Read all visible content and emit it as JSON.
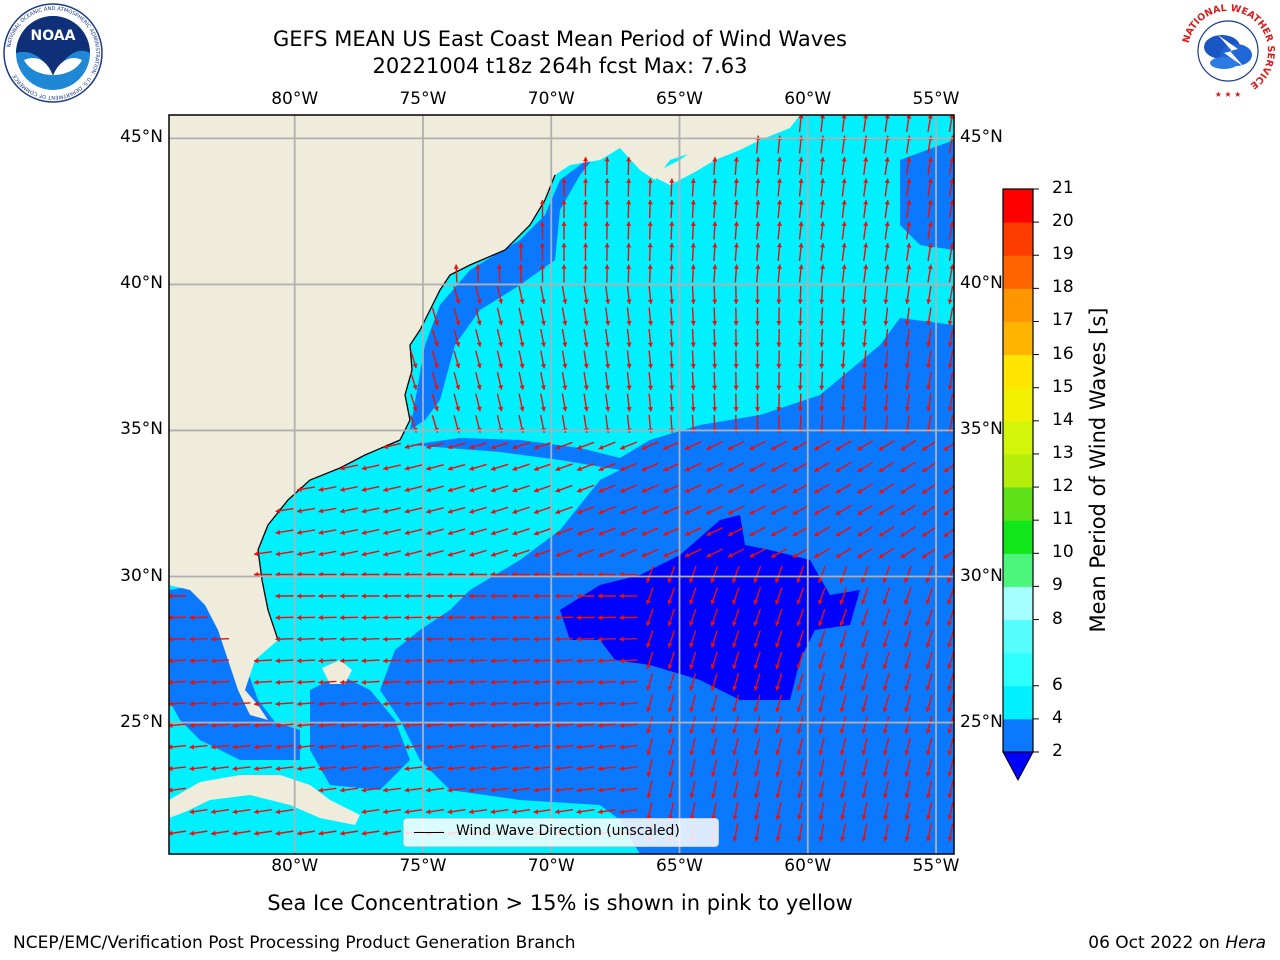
{
  "title": {
    "line1": "GEFS MEAN US East Coast Mean Period of Wind Waves",
    "line2": "20221004 t18z 264h fcst   Max: 7.63"
  },
  "map": {
    "lon_labels": [
      "80°W",
      "75°W",
      "70°W",
      "65°W",
      "60°W",
      "55°W"
    ],
    "lat_labels": [
      "45°N",
      "40°N",
      "35°N",
      "30°N",
      "25°N"
    ],
    "extent": {
      "lon_min": -84.9,
      "lon_max": -54.3,
      "lat_min": 20.5,
      "lat_max": 45.8
    },
    "colors": {
      "land": "#efecdc",
      "grid": "#b0b0b0",
      "arrow": "#e8100a"
    }
  },
  "legend": {
    "label": "Wind Wave Direction (unscaled)"
  },
  "colorbar": {
    "label": "Mean Period of Wind Waves [s]",
    "ticks": [
      "21",
      "20",
      "19",
      "18",
      "17",
      "16",
      "15",
      "14",
      "13",
      "12",
      "11",
      "10",
      "9",
      "8",
      "6",
      "4",
      "2"
    ],
    "extend_color": "#0000ff",
    "bins": [
      {
        "min": 2,
        "max": 4,
        "color": "#0a78ff"
      },
      {
        "min": 4,
        "max": 6,
        "color": "#00f0ff"
      },
      {
        "min": 6,
        "max": 7,
        "color": "#2effff"
      },
      {
        "min": 7,
        "max": 8,
        "color": "#55ffff"
      },
      {
        "min": 8,
        "max": 9,
        "color": "#a6ffff"
      },
      {
        "min": 9,
        "max": 10,
        "color": "#4cf57c"
      },
      {
        "min": 10,
        "max": 11,
        "color": "#10e61a"
      },
      {
        "min": 11,
        "max": 12,
        "color": "#5fe11a"
      },
      {
        "min": 12,
        "max": 13,
        "color": "#b4ee0a"
      },
      {
        "min": 13,
        "max": 14,
        "color": "#d2f50a"
      },
      {
        "min": 14,
        "max": 15,
        "color": "#f0f000"
      },
      {
        "min": 15,
        "max": 16,
        "color": "#ffe600"
      },
      {
        "min": 16,
        "max": 17,
        "color": "#ffb400"
      },
      {
        "min": 17,
        "max": 18,
        "color": "#ff9600"
      },
      {
        "min": 18,
        "max": 19,
        "color": "#ff6400"
      },
      {
        "min": 19,
        "max": 20,
        "color": "#ff3c00"
      },
      {
        "min": 20,
        "max": 21,
        "color": "#ff0000"
      }
    ]
  },
  "period_zones": {
    "ocean_base": "#00f0ff",
    "zone_2_4": "#0a78ff",
    "zone_lt2": "#0000ff",
    "band_6_7": "#2effff"
  },
  "notes": {
    "sea_ice": "Sea Ice Concentration > 15% is shown in pink to yellow",
    "credit": "NCEP/EMC/Verification Post Processing Product Generation Branch",
    "date_prefix": "06 Oct 2022 on ",
    "machine": "Hera"
  },
  "logos": {
    "noaa_text": "NOAA",
    "noaa_ring": "NATIONAL OCEANIC AND ATMOSPHERIC ADMINISTRATION · U.S. DEPARTMENT OF COMMERCE",
    "nws_ring": "NATIONAL WEATHER SERVICE"
  }
}
